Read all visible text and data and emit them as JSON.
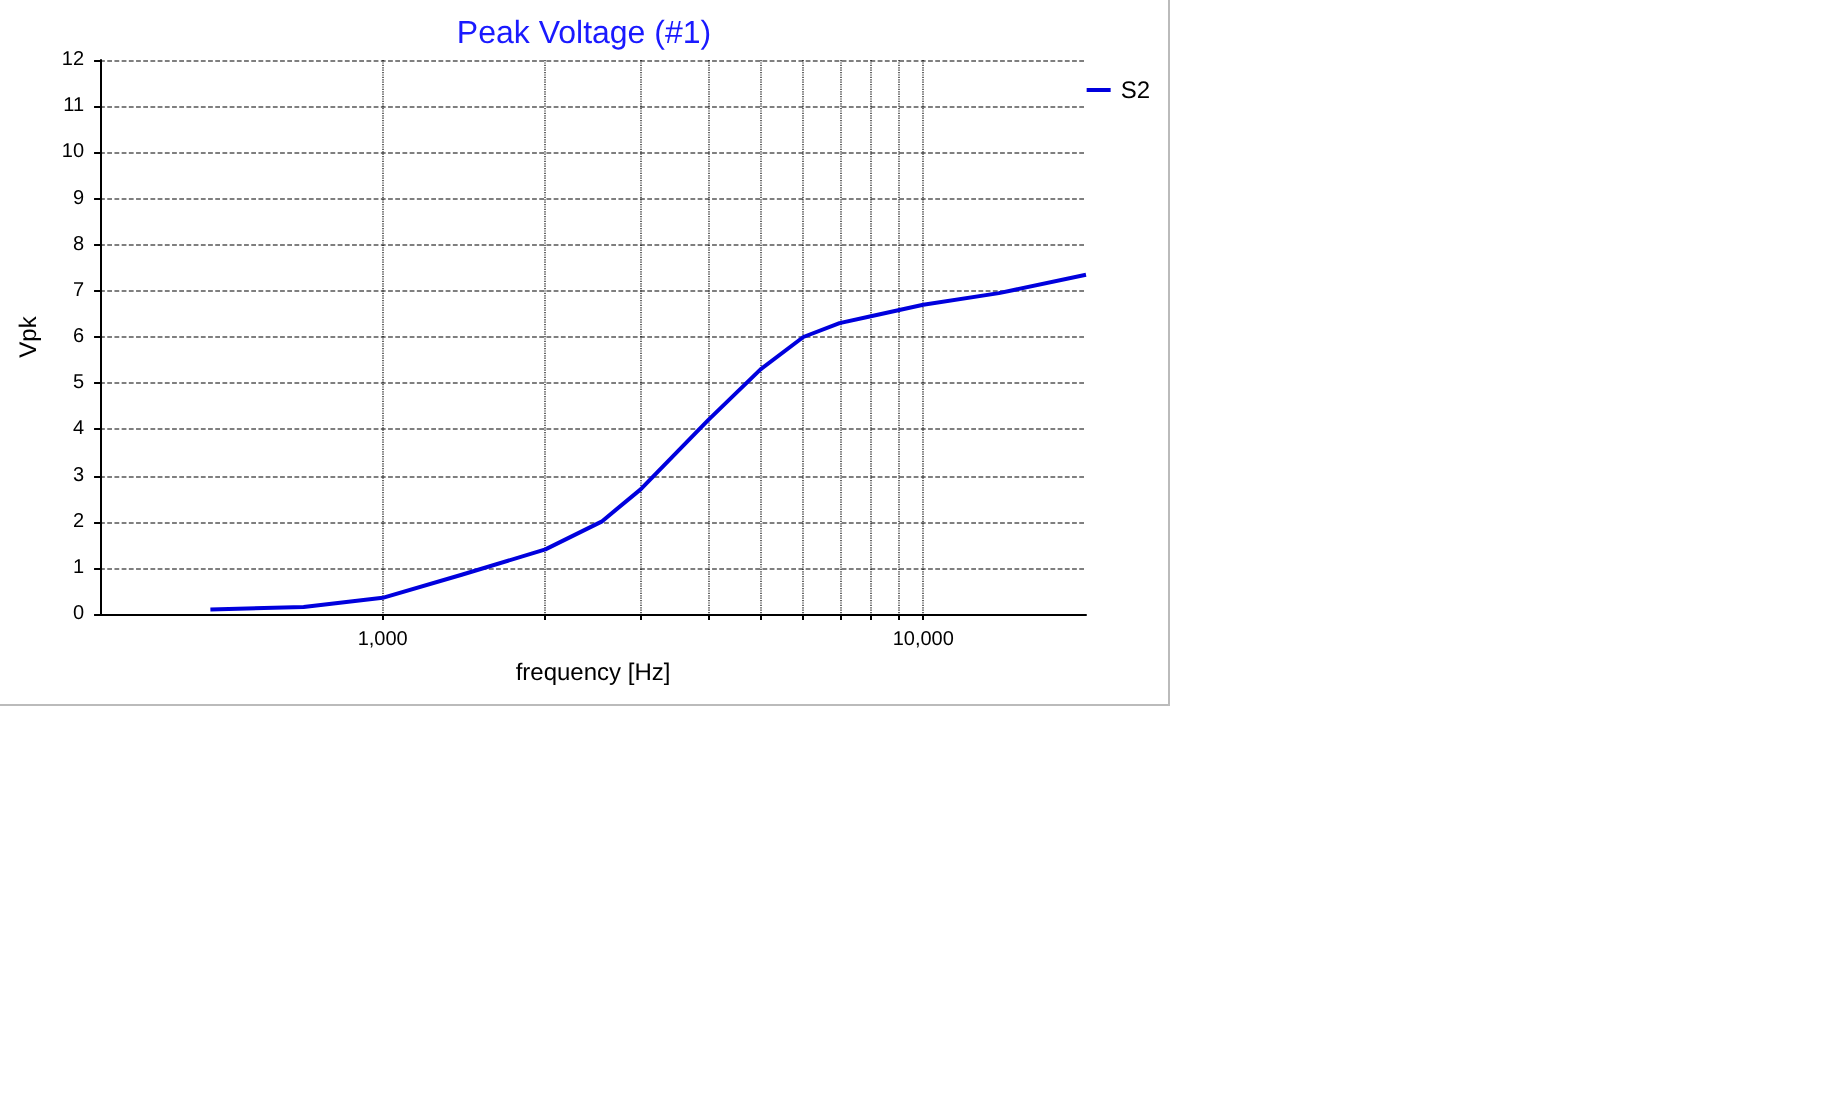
{
  "chart_data": {
    "type": "line",
    "title": "Peak Voltage (#1)",
    "xlabel": "frequency [Hz]",
    "ylabel": "Vpk",
    "log": "x",
    "xlim": [
      300,
      20000
    ],
    "xticks": [
      {
        "value": 1000,
        "label": "1,000"
      },
      {
        "value": 2000,
        "label": null
      },
      {
        "value": 3000,
        "label": null
      },
      {
        "value": 4000,
        "label": null
      },
      {
        "value": 5000,
        "label": null
      },
      {
        "value": 6000,
        "label": null
      },
      {
        "value": 7000,
        "label": null
      },
      {
        "value": 8000,
        "label": null
      },
      {
        "value": 9000,
        "label": null
      },
      {
        "value": 10000,
        "label": "10,000"
      }
    ],
    "ylim": [
      0,
      12
    ],
    "yticks": [
      0,
      1,
      2,
      3,
      4,
      5,
      6,
      7,
      8,
      9,
      10,
      11,
      12
    ],
    "grid": true,
    "legend": "top right",
    "marker": "none",
    "line_style": "solid",
    "series": [
      {
        "name": "S2",
        "color": "#0000dd",
        "x": [
          480,
          714,
          1000,
          1400,
          2000,
          2540,
          3000,
          4000,
          5000,
          6000,
          7000,
          8000,
          10000,
          13800,
          20000
        ],
        "values": [
          0.1,
          0.15,
          0.35,
          0.85,
          1.4,
          2.0,
          2.7,
          4.2,
          5.3,
          6.0,
          6.3,
          6.45,
          6.7,
          6.95,
          7.35
        ]
      }
    ]
  }
}
